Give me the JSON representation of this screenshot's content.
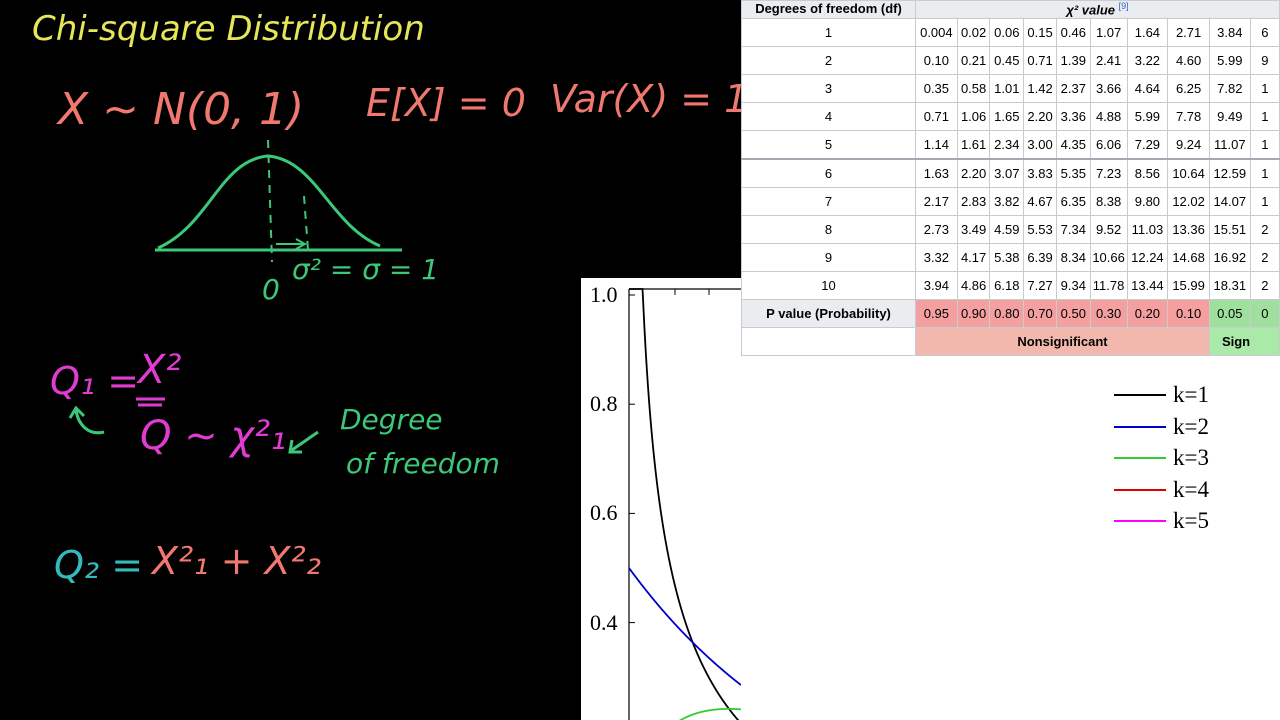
{
  "notes": {
    "title": "Chi-square Distribution",
    "normal_def": "X ~ N(0, 1)",
    "expectation": "E[X] = 0",
    "variance": "Var(X) = 1",
    "zero": "0",
    "sigma": "σ² = σ = 1",
    "q1_lhs": "Q₁ =",
    "q1_rhs": "X²",
    "q_dist": "Q ~ χ²₁",
    "degree_1": "Degree",
    "degree_2": "of freedom",
    "q2_lhs": "Q₂ =",
    "q2_rhs": "X²₁ + X²₂",
    "colors": {
      "title": "#e6e65a",
      "normal": "#f0786e",
      "curve": "#3cc878",
      "q1": "#e03cd2",
      "degree": "#3cc878",
      "q2_lhs": "#33bbbb",
      "q2_rhs": "#f0786e"
    }
  },
  "table": {
    "header_df": "Degrees of freedom (df)",
    "header_chi": "χ² value",
    "header_ref": "[9]",
    "rows": [
      {
        "df": "1",
        "values": [
          "0.004",
          "0.02",
          "0.06",
          "0.15",
          "0.46",
          "1.07",
          "1.64",
          "2.71",
          "3.84",
          "6"
        ]
      },
      {
        "df": "2",
        "values": [
          "0.10",
          "0.21",
          "0.45",
          "0.71",
          "1.39",
          "2.41",
          "3.22",
          "4.60",
          "5.99",
          "9"
        ]
      },
      {
        "df": "3",
        "values": [
          "0.35",
          "0.58",
          "1.01",
          "1.42",
          "2.37",
          "3.66",
          "4.64",
          "6.25",
          "7.82",
          "1"
        ]
      },
      {
        "df": "4",
        "values": [
          "0.71",
          "1.06",
          "1.65",
          "2.20",
          "3.36",
          "4.88",
          "5.99",
          "7.78",
          "9.49",
          "1"
        ]
      },
      {
        "df": "5",
        "values": [
          "1.14",
          "1.61",
          "2.34",
          "3.00",
          "4.35",
          "6.06",
          "7.29",
          "9.24",
          "11.07",
          "1"
        ]
      },
      {
        "df": "6",
        "values": [
          "1.63",
          "2.20",
          "3.07",
          "3.83",
          "5.35",
          "7.23",
          "8.56",
          "10.64",
          "12.59",
          "1"
        ]
      },
      {
        "df": "7",
        "values": [
          "2.17",
          "2.83",
          "3.82",
          "4.67",
          "6.35",
          "8.38",
          "9.80",
          "12.02",
          "14.07",
          "1"
        ]
      },
      {
        "df": "8",
        "values": [
          "2.73",
          "3.49",
          "4.59",
          "5.53",
          "7.34",
          "9.52",
          "11.03",
          "13.36",
          "15.51",
          "2"
        ]
      },
      {
        "df": "9",
        "values": [
          "3.32",
          "4.17",
          "5.38",
          "6.39",
          "8.34",
          "10.66",
          "12.24",
          "14.68",
          "16.92",
          "2"
        ]
      },
      {
        "df": "10",
        "values": [
          "3.94",
          "4.86",
          "6.18",
          "7.27",
          "9.34",
          "11.78",
          "13.44",
          "15.99",
          "18.31",
          "2"
        ]
      }
    ],
    "pvalue_label": "P value (Probability)",
    "pvalues": [
      "0.95",
      "0.90",
      "0.80",
      "0.70",
      "0.50",
      "0.30",
      "0.20",
      "0.10",
      "0.05",
      "0"
    ],
    "nonsignificant": "Nonsignificant",
    "significant": "Sign"
  },
  "chart_data": {
    "type": "line",
    "x_range": [
      0,
      8
    ],
    "ylim": [
      0,
      1.0
    ],
    "y_ticks": [
      "1.0",
      "0.8",
      "0.6",
      "0.4"
    ],
    "legend_position": "top-right",
    "series": [
      {
        "name": "k=1",
        "color": "#000000",
        "df": 1
      },
      {
        "name": "k=2",
        "color": "#0000cc",
        "df": 2
      },
      {
        "name": "k=3",
        "color": "#33cc33",
        "df": 3
      },
      {
        "name": "k=4",
        "color": "#dd0000",
        "df": 4
      },
      {
        "name": "k=5",
        "color": "#ff00ff",
        "df": 5
      }
    ]
  }
}
